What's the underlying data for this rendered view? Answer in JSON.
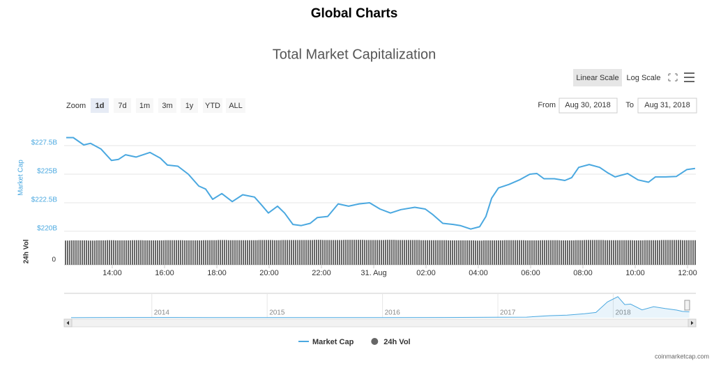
{
  "header": {
    "title": "Global Charts"
  },
  "controls": {
    "scale_buttons": [
      {
        "label": "Linear Scale",
        "selected": true
      },
      {
        "label": "Log Scale",
        "selected": false
      }
    ],
    "zoom_label": "Zoom",
    "zoom_buttons": [
      {
        "label": "1d",
        "selected": true
      },
      {
        "label": "7d",
        "selected": false
      },
      {
        "label": "1m",
        "selected": false
      },
      {
        "label": "3m",
        "selected": false
      },
      {
        "label": "1y",
        "selected": false
      },
      {
        "label": "YTD",
        "selected": false
      },
      {
        "label": "ALL",
        "selected": false
      }
    ],
    "from_label": "From",
    "from_value": "Aug 30, 2018",
    "to_label": "To",
    "to_value": "Aug 31, 2018"
  },
  "chart_data": [
    {
      "type": "line",
      "title": "Total Market Capitalization",
      "ylabel": "Market Cap",
      "y2label": "24h Vol",
      "x": [
        12.24,
        12.51,
        12.91,
        13.17,
        13.57,
        13.97,
        14.24,
        14.51,
        14.91,
        15.44,
        15.84,
        16.11,
        16.51,
        16.91,
        17.31,
        17.57,
        17.84,
        18.19,
        18.59,
        18.99,
        19.44,
        19.71,
        19.97,
        20.32,
        20.59,
        20.91,
        21.23,
        21.57,
        21.84,
        22.24,
        22.64,
        23.04,
        23.44,
        23.84,
        24.24,
        24.64,
        25.04,
        25.57,
        25.97,
        26.24,
        26.64,
        27.04,
        27.31,
        27.71,
        28.05,
        28.29,
        28.51,
        28.77,
        29.17,
        29.57,
        29.97,
        30.24,
        30.51,
        30.91,
        31.31,
        31.57,
        31.84,
        32.24,
        32.64,
        32.96,
        33.23,
        33.71,
        34.11,
        34.51,
        34.77,
        35.17,
        35.57,
        35.97,
        36.29
      ],
      "series": [
        {
          "name": "Market Cap",
          "color": "#4aa8e0",
          "values": [
            228.2,
            228.2,
            227.56,
            227.7,
            227.2,
            226.2,
            226.3,
            226.7,
            226.5,
            226.9,
            226.4,
            225.8,
            225.7,
            225.0,
            223.96,
            223.7,
            222.8,
            223.3,
            222.6,
            223.2,
            223.0,
            222.3,
            221.6,
            222.2,
            221.6,
            220.6,
            220.5,
            220.7,
            221.2,
            221.3,
            222.4,
            222.2,
            222.4,
            222.5,
            221.95,
            221.6,
            221.9,
            222.1,
            221.95,
            221.5,
            220.7,
            220.6,
            220.5,
            220.2,
            220.4,
            221.3,
            222.9,
            223.8,
            224.1,
            224.5,
            225.0,
            225.06,
            224.6,
            224.6,
            224.45,
            224.7,
            225.6,
            225.85,
            225.6,
            225.1,
            224.76,
            225.06,
            224.5,
            224.3,
            224.76,
            224.76,
            224.8,
            225.4,
            225.5
          ]
        },
        {
          "name": "24h Vol",
          "color": "#666666",
          "type": "bar",
          "axis": "y2",
          "values": [
            14.1,
            14.2,
            14.2,
            14.1,
            14.2,
            14.3,
            14.2,
            14.2,
            14.3,
            14.2,
            14.2,
            14.3,
            14.3,
            14.2,
            14.2,
            14.3,
            14.3,
            14.4,
            14.3,
            14.3,
            14.3,
            14.4,
            14.4,
            14.3,
            14.4,
            14.4,
            14.4,
            14.4,
            14.5,
            14.4,
            14.4,
            14.5,
            14.5,
            14.4,
            14.4,
            14.5,
            14.4,
            14.4,
            14.3,
            14.3,
            14.3,
            14.2,
            14.2,
            14.2,
            14.1,
            14.2,
            14.2,
            14.2,
            14.3,
            14.3,
            14.2,
            14.2,
            14.3,
            14.3,
            14.2,
            14.2,
            14.3,
            14.4,
            14.4,
            14.3,
            14.3,
            14.3,
            14.2,
            14.3,
            14.3,
            14.4,
            14.4,
            14.3,
            14.3
          ]
        }
      ],
      "xlim": [
        12.16,
        36.32
      ],
      "xticks": [
        {
          "value": 14,
          "label": "14:00"
        },
        {
          "value": 16,
          "label": "16:00"
        },
        {
          "value": 18,
          "label": "18:00"
        },
        {
          "value": 20,
          "label": "20:00"
        },
        {
          "value": 22,
          "label": "22:00"
        },
        {
          "value": 24,
          "label": "31. Aug"
        },
        {
          "value": 26,
          "label": "02:00"
        },
        {
          "value": 28,
          "label": "04:00"
        },
        {
          "value": 30,
          "label": "06:00"
        },
        {
          "value": 32,
          "label": "08:00"
        },
        {
          "value": 34,
          "label": "10:00"
        },
        {
          "value": 36,
          "label": "12:00"
        }
      ],
      "ylim": [
        219.63,
        228.66
      ],
      "yticks": [
        {
          "value": 220,
          "label": "$220B"
        },
        {
          "value": 222.5,
          "label": "$222.5B"
        },
        {
          "value": 225,
          "label": "$225B"
        },
        {
          "value": 227.5,
          "label": "$227.5B"
        }
      ],
      "y2lim": [
        0,
        15
      ],
      "y2ticks": [
        0
      ],
      "grid": true,
      "legend": "bottom"
    },
    {
      "type": "area",
      "color": "#4aa8e0",
      "x": [
        2013.3,
        2013.8,
        2014.0,
        2014.5,
        2015.0,
        2015.5,
        2016.0,
        2016.5,
        2017.0,
        2017.25,
        2017.45,
        2017.6,
        2017.75,
        2017.85,
        2017.95,
        2018.04,
        2018.1,
        2018.15,
        2018.25,
        2018.35,
        2018.45,
        2018.55,
        2018.6,
        2018.66
      ],
      "values": [
        1.5,
        10,
        10,
        8,
        5,
        4,
        7,
        10,
        18,
        25,
        80,
        100,
        150,
        200,
        600,
        800,
        500,
        520,
        300,
        420,
        350,
        290,
        240,
        225
      ],
      "xlim": [
        2013.27,
        2018.65
      ],
      "ylim": [
        0,
        900
      ],
      "xticks": [
        2014,
        2015,
        2016,
        2017,
        2018
      ]
    }
  ],
  "footer": "coinmarketcap.com"
}
